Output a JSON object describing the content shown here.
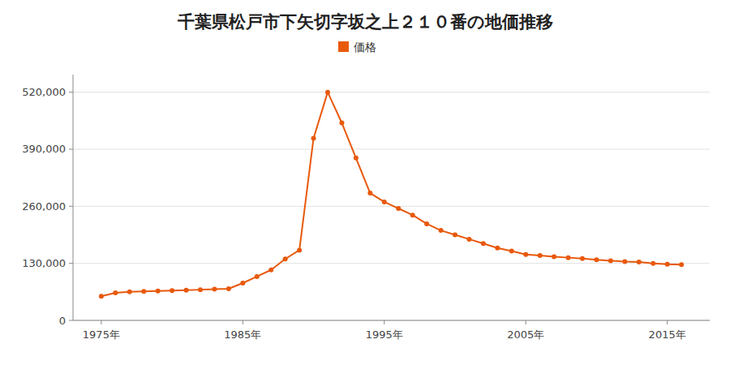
{
  "chart_data": {
    "type": "line",
    "title": "千葉県松戸市下矢切字坂之上２１０番の地価推移",
    "x": [
      1975,
      1976,
      1977,
      1978,
      1979,
      1980,
      1981,
      1982,
      1983,
      1984,
      1985,
      1986,
      1987,
      1988,
      1989,
      1990,
      1991,
      1992,
      1993,
      1994,
      1995,
      1996,
      1997,
      1998,
      1999,
      2000,
      2001,
      2002,
      2003,
      2004,
      2005,
      2006,
      2007,
      2008,
      2009,
      2010,
      2011,
      2012,
      2013,
      2014,
      2015,
      2016
    ],
    "series": [
      {
        "name": "価格",
        "color": "#e8590c",
        "marker": "circle",
        "values": [
          55000,
          63000,
          65000,
          66000,
          67000,
          68000,
          69000,
          70000,
          71000,
          72000,
          85000,
          100000,
          115000,
          140000,
          160000,
          415000,
          520000,
          450000,
          370000,
          290000,
          270000,
          255000,
          240000,
          220000,
          205000,
          195000,
          185000,
          175000,
          165000,
          158000,
          150000,
          148000,
          145000,
          143000,
          141000,
          138000,
          136000,
          134000,
          133000,
          130000,
          128000,
          127000
        ]
      }
    ],
    "xlim": [
      1973,
      2018
    ],
    "xticks": [
      {
        "value": 1975,
        "label": "1975年"
      },
      {
        "value": 1985,
        "label": "1985年"
      },
      {
        "value": 1995,
        "label": "1995年"
      },
      {
        "value": 2005,
        "label": "2005年"
      },
      {
        "value": 2015,
        "label": "2015年"
      }
    ],
    "ylim": [
      0,
      560000
    ],
    "yticks": [
      0,
      {
        "value": 130000,
        "label": "130,000"
      },
      {
        "value": 260000,
        "label": "260,000"
      },
      {
        "value": 390000,
        "label": "390,000"
      },
      {
        "value": 520000,
        "label": "520,000"
      }
    ],
    "grid": true,
    "legend": "top"
  }
}
